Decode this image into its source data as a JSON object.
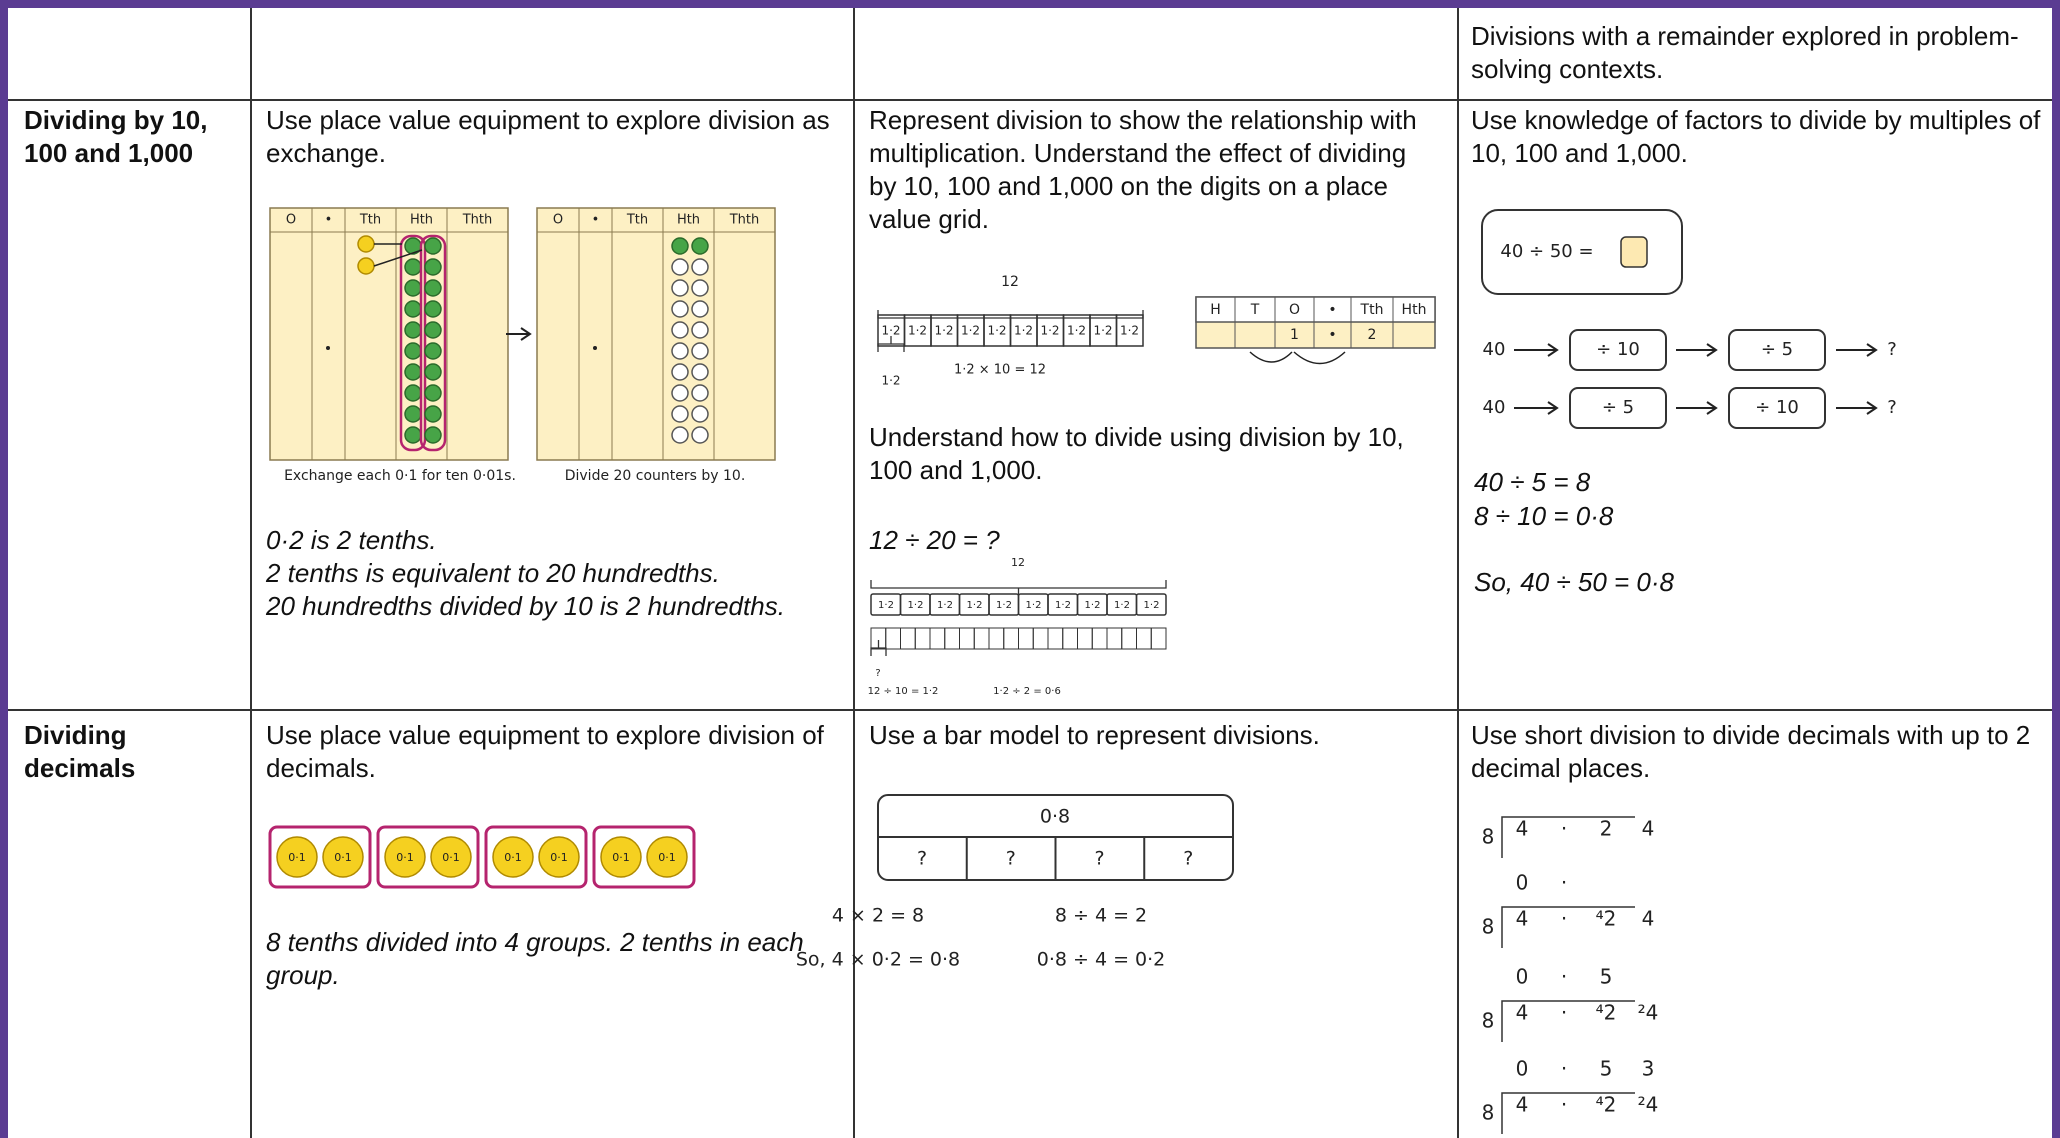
{
  "table": {
    "rows": [
      {
        "col4": {
          "text": "Divisions with a remainder explored in problem-solving contexts."
        }
      },
      {
        "heading": "Dividing by 10, 100 and 1,000",
        "col2": {
          "text": "Use place value equipment to explore division as exchange.",
          "grid_headers": [
            "O",
            "•",
            "Tth",
            "Hth",
            "Thth"
          ],
          "captions": [
            "Exchange each 0·1 for ten 0·01s.",
            "Divide 20 counters by 10."
          ],
          "notes": [
            "0·2 is 2 tenths.",
            "2 tenths is equivalent to 20 hundredths.",
            "20 hundredths divided by 10 is 2 hundredths."
          ]
        },
        "col3": {
          "text1": "Represent division to show the relationship with multiplication. Understand the effect of dividing by 10, 100 and 1,000 on the digits on a place value grid.",
          "bar_total": "12",
          "bar_part": "1·2",
          "bar_eq": "1·2 × 10 = 12",
          "pv_headers": [
            "H",
            "T",
            "O",
            "•",
            "Tth",
            "Hth"
          ],
          "pv_values": [
            "1",
            "•",
            "2"
          ],
          "text2": "Understand how to divide using division by 10, 100 and 1,000.",
          "question": "12 ÷ 20 = ?",
          "q_total": "12",
          "q_part": "1·2",
          "q_unknown": "?",
          "q_eqs": [
            "12 ÷ 10 = 1·2",
            "1·2 ÷ 2 = 0·6"
          ]
        },
        "col4": {
          "text": "Use knowledge of factors to divide by multiples of 10, 100 and 1,000.",
          "box_eq": "40 ÷ 50 =",
          "chains": [
            [
              "40",
              "÷ 10",
              "÷ 5",
              "?"
            ],
            [
              "40",
              "÷ 5",
              "÷ 10",
              "?"
            ]
          ],
          "steps": [
            "40 ÷ 5 = 8",
            "8 ÷ 10 = 0·8"
          ],
          "conclusion": "So, 40 ÷ 50 = 0·8"
        }
      },
      {
        "heading": "Dividing decimals",
        "col2": {
          "text": "Use place value equipment to explore division of decimals.",
          "counter": "0·1",
          "note": "8 tenths divided into 4 groups. 2 tenths in each group."
        },
        "col3": {
          "text": "Use a bar model to represent divisions.",
          "bar_total": "0·8",
          "bar_parts": [
            "?",
            "?",
            "?",
            "?"
          ],
          "eqs": [
            [
              "4 × 2 = 8",
              "8 ÷ 4 = 2"
            ],
            [
              "So, 4 × 0·2 = 0·8",
              "0·8 ÷ 4 = 0·2"
            ]
          ]
        },
        "col4": {
          "text": "Use short division to divide decimals with up to 2 decimal places.",
          "divisor": "8",
          "steps": [
            {
              "dividend": [
                "4",
                "·",
                "2",
                "4"
              ]
            },
            {
              "quotient": [
                "0",
                "·"
              ],
              "dividend": [
                "4",
                "·",
                "⁴2",
                "4"
              ]
            },
            {
              "quotient": [
                "0",
                "·",
                "5"
              ],
              "dividend": [
                "4",
                "·",
                "⁴2",
                "²4"
              ]
            },
            {
              "quotient": [
                "0",
                "·",
                "5",
                "3"
              ],
              "dividend": [
                "4",
                "·",
                "⁴2",
                "²4"
              ]
            }
          ]
        }
      }
    ]
  }
}
